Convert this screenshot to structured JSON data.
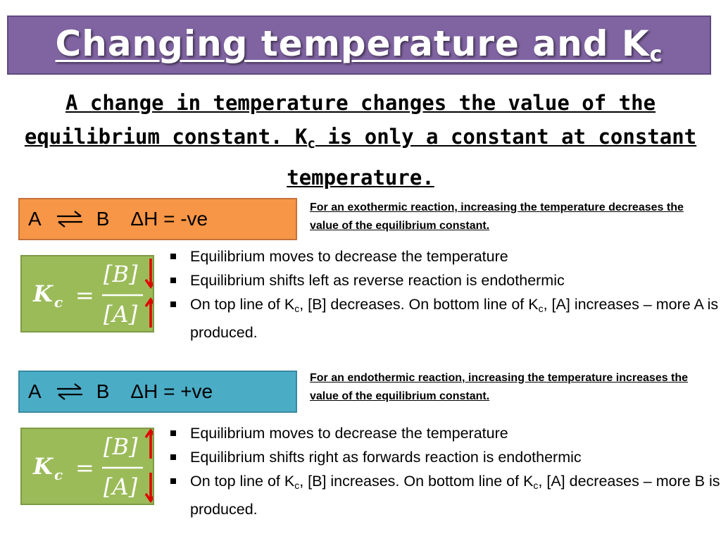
{
  "title": {
    "main": "Changing temperature and K",
    "sub": "c"
  },
  "intro": {
    "part1": "A change in temperature changes the value of the equilibrium constant. K",
    "sub": "c",
    "part2": " is only a constant at constant temperature."
  },
  "exothermic": {
    "reactant": "A",
    "product": "B",
    "enthalpy": "ΔH = -ve",
    "note": "For an exothermic reaction, increasing the temperature decreases the value of the equilibrium constant.",
    "kc_symbol": "K",
    "kc_sub": "c",
    "kc_eq": "=",
    "numerator": "[B]",
    "denominator": "[A]",
    "bullets": {
      "b1": "Equilibrium moves to decrease the temperature",
      "b2": "Equilibrium shifts left as reverse reaction is endothermic",
      "b3_a": "On top line of K",
      "b3_sub1": "c",
      "b3_b": ", [B] decreases. On bottom line of K",
      "b3_sub2": "c",
      "b3_c": ", [A] increases – more A is produced."
    },
    "arrows": {
      "numerator": "down",
      "denominator": "up"
    }
  },
  "endothermic": {
    "reactant": "A",
    "product": "B",
    "enthalpy": "ΔH = +ve",
    "note": "For an endothermic reaction, increasing the temperature increases the value of the equilibrium constant.",
    "kc_symbol": "K",
    "kc_sub": "c",
    "kc_eq": "=",
    "numerator": "[B]",
    "denominator": "[A]",
    "bullets": {
      "b1": "Equilibrium moves to decrease the temperature",
      "b2": "Equilibrium shifts right as forwards reaction is endothermic",
      "b3_a": "On top line of K",
      "b3_sub1": "c",
      "b3_b": ", [B] increases. On bottom line of K",
      "b3_sub2": "c",
      "b3_c": ", [A] decreases – more B is produced."
    },
    "arrows": {
      "numerator": "up",
      "denominator": "down"
    }
  },
  "colors": {
    "title_bar": "#8064a2",
    "exothermic_box": "#f79646",
    "endothermic_box": "#4bacc6",
    "kc_box": "#9bbb59",
    "arrow": "#e00000"
  },
  "icons": {
    "equilibrium": "equilibrium-arrows-icon",
    "increase": "up-arrow-icon",
    "decrease": "down-arrow-icon"
  }
}
